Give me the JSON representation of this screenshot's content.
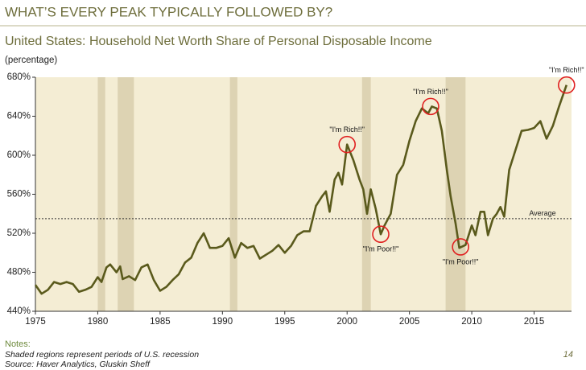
{
  "chart_data": {
    "type": "line",
    "title": "WHAT’S EVERY PEAK TYPICALLY FOLLOWED BY?",
    "subtitle": "United States: Household Net Worth Share of Personal Disposable Income",
    "y_label": "(percentage)",
    "xlim": [
      1975,
      2018
    ],
    "ylim": [
      440,
      680
    ],
    "xticks": [
      1975,
      1980,
      1985,
      1990,
      1995,
      2000,
      2005,
      2010,
      2015
    ],
    "yticks": [
      {
        "value": 440,
        "label": "440%"
      },
      {
        "value": 480,
        "label": "480%"
      },
      {
        "value": 520,
        "label": "520%"
      },
      {
        "value": 560,
        "label": "560%"
      },
      {
        "value": 600,
        "label": "600%"
      },
      {
        "value": 640,
        "label": "640%"
      },
      {
        "value": 680,
        "label": "680%"
      }
    ],
    "shaded_regions": [
      [
        1980.0,
        1980.6
      ],
      [
        1981.6,
        1982.9
      ],
      [
        1990.6,
        1991.2
      ],
      [
        2001.2,
        2001.9
      ],
      [
        2007.9,
        2009.5
      ]
    ],
    "shade_color": "#ddd3b3",
    "background": "#f4edd4",
    "average": {
      "label": "Average",
      "value": 535
    },
    "series": [
      {
        "name": "Household Net Worth Share of Personal Disposable Income",
        "color": "#5a5a1c",
        "x": [
          1975,
          1975.5,
          1976,
          1976.5,
          1977,
          1977.5,
          1978,
          1978.5,
          1979,
          1979.5,
          1980,
          1980.3,
          1980.7,
          1981,
          1981.5,
          1981.8,
          1982,
          1982.5,
          1983,
          1983.5,
          1984,
          1984.5,
          1985,
          1985.5,
          1986,
          1986.5,
          1987,
          1987.5,
          1988,
          1988.5,
          1989,
          1989.5,
          1990,
          1990.5,
          1991,
          1991.5,
          1992,
          1992.5,
          1993,
          1993.5,
          1994,
          1994.5,
          1995,
          1995.5,
          1996,
          1996.5,
          1997,
          1997.5,
          1998,
          1998.3,
          1998.6,
          1999,
          1999.3,
          1999.6,
          2000,
          2000.5,
          2001,
          2001.3,
          2001.6,
          2001.9,
          2002.3,
          2002.7,
          2003,
          2003.5,
          2004,
          2004.5,
          2005,
          2005.5,
          2006,
          2006.5,
          2006.8,
          2007.2,
          2007.6,
          2008,
          2008.3,
          2008.7,
          2009,
          2009.5,
          2010,
          2010.3,
          2010.7,
          2011,
          2011.3,
          2011.7,
          2012,
          2012.3,
          2012.6,
          2013,
          2013.5,
          2014,
          2014.5,
          2015,
          2015.5,
          2016,
          2016.5,
          2017,
          2017.6
        ],
        "values": [
          467,
          458,
          462,
          470,
          468,
          470,
          468,
          460,
          462,
          465,
          475,
          470,
          485,
          488,
          480,
          486,
          473,
          476,
          472,
          485,
          488,
          472,
          461,
          465,
          472,
          478,
          490,
          495,
          510,
          520,
          505,
          505,
          507,
          515,
          495,
          510,
          505,
          507,
          494,
          498,
          502,
          508,
          500,
          507,
          518,
          522,
          522,
          548,
          558,
          563,
          542,
          575,
          582,
          570,
          611,
          595,
          575,
          565,
          540,
          565,
          545,
          519,
          528,
          540,
          580,
          590,
          615,
          635,
          648,
          643,
          650,
          648,
          625,
          585,
          558,
          530,
          505,
          508,
          528,
          518,
          542,
          542,
          518,
          535,
          540,
          547,
          537,
          585,
          605,
          625,
          626,
          628,
          635,
          617,
          630,
          650,
          672
        ]
      }
    ],
    "annotations": [
      {
        "text": "\"I'm Rich!!\"",
        "x": 2000,
        "y": 611,
        "placement": "above"
      },
      {
        "text": "\"I'm Poor!!\"",
        "x": 2002.7,
        "y": 519,
        "placement": "below"
      },
      {
        "text": "\"I'm Rich!!\"",
        "x": 2006.7,
        "y": 650,
        "placement": "above"
      },
      {
        "text": "\"I'm Poor!!\"",
        "x": 2009.1,
        "y": 506,
        "placement": "below"
      },
      {
        "text": "\"I'm Rich!!\"",
        "x": 2017.6,
        "y": 672,
        "placement": "above"
      }
    ],
    "notes_heading": "Notes:",
    "notes": [
      "Shaded regions represent periods of U.S. recession",
      "Source: Haver Analytics, Gluskin Sheff"
    ],
    "page_number": "14"
  }
}
